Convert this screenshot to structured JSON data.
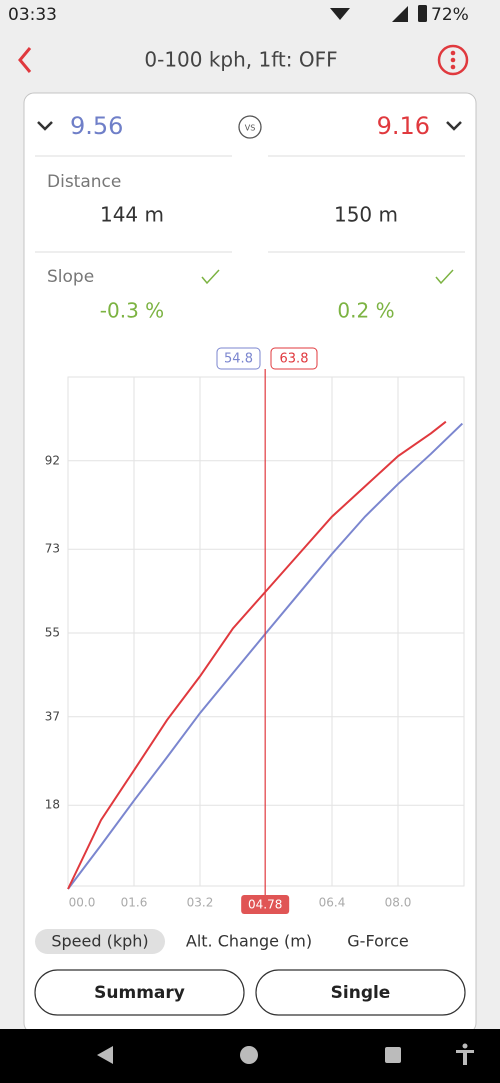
{
  "status": {
    "time": "03:33",
    "battery": "72%"
  },
  "header": {
    "title": "0-100 kph, 1ft: OFF"
  },
  "compare": {
    "left": "9.56",
    "vs": "VS",
    "right": "9.16"
  },
  "distance": {
    "label": "Distance",
    "left": "144 m",
    "right": "150 m"
  },
  "slope": {
    "label": "Slope",
    "left": "-0.3 %",
    "right": "0.2 %"
  },
  "chart_data": {
    "type": "line",
    "xlim": [
      0,
      9.6
    ],
    "ylim": [
      0,
      110
    ],
    "xticks": [
      {
        "value": 0,
        "label": "00.0"
      },
      {
        "value": 1.6,
        "label": "01.6"
      },
      {
        "value": 3.2,
        "label": "03.2"
      },
      {
        "value": 6.4,
        "label": "06.4"
      },
      {
        "value": 8.0,
        "label": "08.0"
      }
    ],
    "yticks": [
      18,
      37,
      55,
      73,
      92
    ],
    "grid": true,
    "series": [
      {
        "color": "#7b86cf",
        "x": [
          0,
          0.8,
          1.6,
          2.4,
          3.2,
          4.0,
          4.8,
          5.6,
          6.4,
          7.2,
          8.0,
          8.8,
          9.56
        ],
        "values": [
          0,
          9.4,
          19,
          28.3,
          37.8,
          46.4,
          55,
          63.5,
          72,
          80,
          87,
          93.5,
          100
        ]
      },
      {
        "color": "#e0393e",
        "x": [
          0,
          0.8,
          1.6,
          2.4,
          3.2,
          4.0,
          4.8,
          5.6,
          6.4,
          7.2,
          8.0,
          8.8,
          9.16
        ],
        "values": [
          0,
          14.8,
          25.5,
          36.3,
          45.7,
          56,
          64,
          72,
          80,
          86.5,
          93,
          97.9,
          100.4
        ]
      }
    ],
    "cursor": {
      "x": {
        "value": 4.78,
        "label": "04.78"
      },
      "values": [
        54.8,
        63.8
      ]
    }
  },
  "tabs": [
    "Speed (kph)",
    "Alt. Change (m)",
    "G-Force"
  ],
  "buttons": [
    "Summary",
    "Single"
  ]
}
